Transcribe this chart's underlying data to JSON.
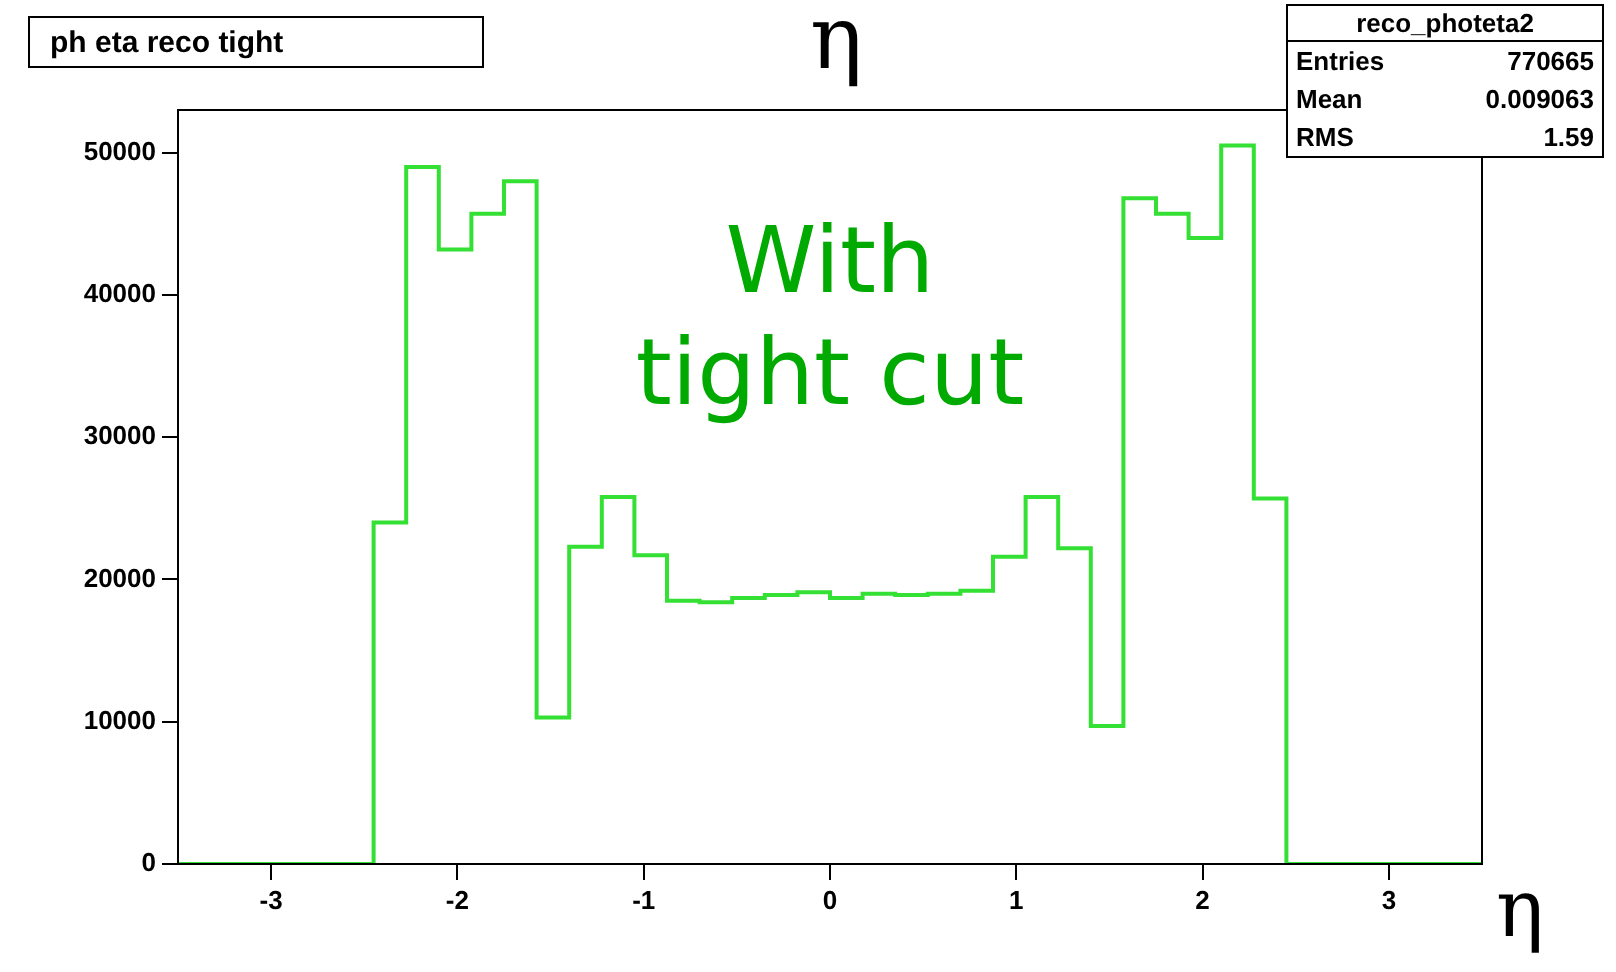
{
  "chart_data": {
    "type": "histogram",
    "title": "ph eta reco tight",
    "subtitle": "η",
    "xlabel": "η",
    "bins": [
      -3.5,
      -3.325,
      -3.15,
      -2.975,
      -2.8,
      -2.625,
      -2.45,
      -2.275,
      -2.1,
      -1.925,
      -1.75,
      -1.575,
      -1.4,
      -1.225,
      -1.05,
      -0.875,
      -0.7,
      -0.525,
      -0.35,
      -0.175,
      0,
      0.175,
      0.35,
      0.525,
      0.7,
      0.875,
      1.05,
      1.225,
      1.4,
      1.575,
      1.75,
      1.925,
      2.1,
      2.275,
      2.45,
      2.625,
      2.8,
      2.975,
      3.15,
      3.325,
      3.5
    ],
    "values": [
      0,
      0,
      0,
      0,
      0,
      0,
      24000,
      49000,
      43200,
      45700,
      48000,
      10300,
      22300,
      25800,
      21700,
      18500,
      18400,
      18700,
      18900,
      19100,
      18700,
      19000,
      18900,
      19000,
      19200,
      21600,
      25800,
      22200,
      9700,
      46800,
      45700,
      44000,
      50500,
      25700,
      0,
      0,
      0,
      0,
      0,
      0
    ],
    "color": "#33e033",
    "xlim": [
      -3.5,
      3.5
    ],
    "xticks": [
      -3,
      -2,
      -1,
      0,
      1,
      2,
      3
    ],
    "ylim": [
      0,
      53000
    ],
    "yticks": [
      0,
      10000,
      20000,
      30000,
      40000,
      50000
    ],
    "grid": false,
    "legend": false,
    "annotations": [
      "With tight cut",
      "reco_photeta2",
      "Entries 770665",
      "Mean 0.009063",
      "RMS 1.59"
    ]
  }
}
